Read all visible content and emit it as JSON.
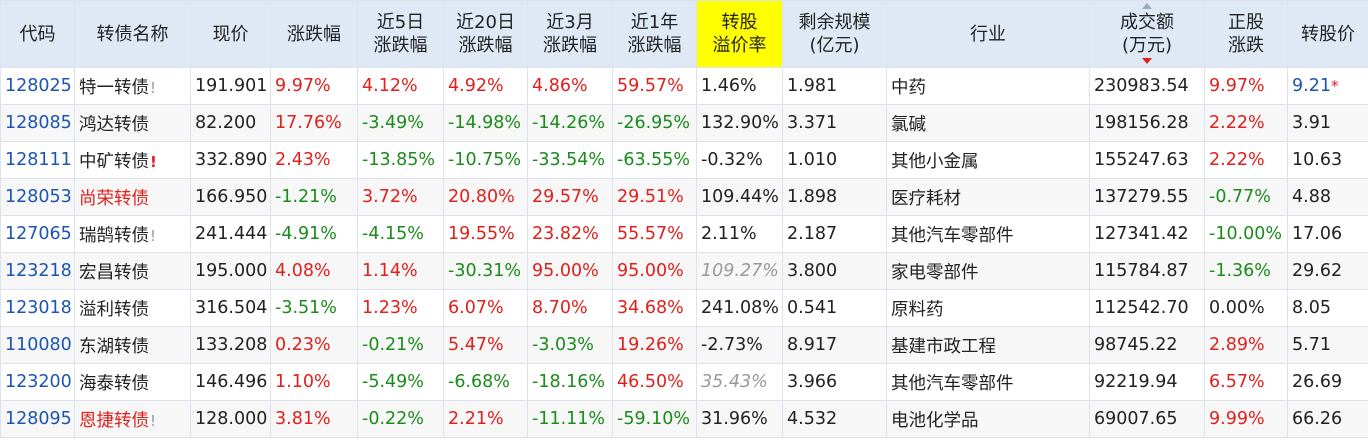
{
  "headers": {
    "code": "代码",
    "name": "转债名称",
    "price": "现价",
    "change": "涨跌幅",
    "chg5d_1": "近5日",
    "chg5d_2": "涨跌幅",
    "chg20d_1": "近20日",
    "chg20d_2": "涨跌幅",
    "chg3m_1": "近3月",
    "chg3m_2": "涨跌幅",
    "chg1y_1": "近1年",
    "chg1y_2": "涨跌幅",
    "premium_1": "转股",
    "premium_2": "溢价率",
    "scale_1": "剩余规模",
    "scale_2": "(亿元)",
    "industry": "行业",
    "volume_1": "成交额",
    "volume_2": "(万元)",
    "stock_chg_1": "正股",
    "stock_chg_2": "涨跌",
    "conv_price": "转股价"
  },
  "colors": {
    "up": "#e0201c",
    "down": "#1a8c1a",
    "code": "#1b54b2",
    "header_bg": "#dfe9f6",
    "highlight": "#ffff00"
  },
  "rows": [
    {
      "code": "128025",
      "name": "特一转债",
      "mark": "!",
      "mark_style": "grey",
      "name_style": "",
      "price": "191.901",
      "change": "9.97%",
      "change_s": "red",
      "chg5d": "4.12%",
      "chg5d_s": "red",
      "chg20d": "4.92%",
      "chg20d_s": "red",
      "chg3m": "4.86%",
      "chg3m_s": "red",
      "chg1y": "59.57%",
      "chg1y_s": "red",
      "premium": "1.46%",
      "premium_s": "",
      "scale": "1.981",
      "industry": "中药",
      "volume": "230983.54",
      "stock_chg": "9.97%",
      "stock_chg_s": "red",
      "conv_price": "9.21",
      "conv_s": "blue",
      "conv_star": "*"
    },
    {
      "code": "128085",
      "name": "鸿达转债",
      "mark": "",
      "mark_style": "",
      "name_style": "",
      "price": "82.200",
      "change": "17.76%",
      "change_s": "red",
      "chg5d": "-3.49%",
      "chg5d_s": "green",
      "chg20d": "-14.98%",
      "chg20d_s": "green",
      "chg3m": "-14.26%",
      "chg3m_s": "green",
      "chg1y": "-26.95%",
      "chg1y_s": "green",
      "premium": "132.90%",
      "premium_s": "",
      "scale": "3.371",
      "industry": "氯碱",
      "volume": "198156.28",
      "stock_chg": "2.22%",
      "stock_chg_s": "red",
      "conv_price": "3.91",
      "conv_s": "",
      "conv_star": ""
    },
    {
      "code": "128111",
      "name": "中矿转债",
      "mark": "!",
      "mark_style": "red",
      "name_style": "",
      "price": "332.890",
      "change": "2.43%",
      "change_s": "red",
      "chg5d": "-13.85%",
      "chg5d_s": "green",
      "chg20d": "-10.75%",
      "chg20d_s": "green",
      "chg3m": "-33.54%",
      "chg3m_s": "green",
      "chg1y": "-63.55%",
      "chg1y_s": "green",
      "premium": "-0.32%",
      "premium_s": "",
      "scale": "1.010",
      "industry": "其他小金属",
      "volume": "155247.63",
      "stock_chg": "2.22%",
      "stock_chg_s": "red",
      "conv_price": "10.63",
      "conv_s": "",
      "conv_star": ""
    },
    {
      "code": "128053",
      "name": "尚荣转债",
      "mark": "",
      "mark_style": "",
      "name_style": "red",
      "price": "166.950",
      "change": "-1.21%",
      "change_s": "green",
      "chg5d": "3.72%",
      "chg5d_s": "red",
      "chg20d": "20.80%",
      "chg20d_s": "red",
      "chg3m": "29.57%",
      "chg3m_s": "red",
      "chg1y": "29.51%",
      "chg1y_s": "red",
      "premium": "109.44%",
      "premium_s": "",
      "scale": "1.898",
      "industry": "医疗耗材",
      "volume": "137279.55",
      "stock_chg": "-0.77%",
      "stock_chg_s": "green",
      "conv_price": "4.88",
      "conv_s": "",
      "conv_star": ""
    },
    {
      "code": "127065",
      "name": "瑞鹄转债",
      "mark": "!",
      "mark_style": "grey",
      "name_style": "",
      "price": "241.444",
      "change": "-4.91%",
      "change_s": "green",
      "chg5d": "-4.15%",
      "chg5d_s": "green",
      "chg20d": "19.55%",
      "chg20d_s": "red",
      "chg3m": "23.82%",
      "chg3m_s": "red",
      "chg1y": "55.57%",
      "chg1y_s": "red",
      "premium": "2.11%",
      "premium_s": "",
      "scale": "2.187",
      "industry": "其他汽车零部件",
      "volume": "127341.42",
      "stock_chg": "-10.00%",
      "stock_chg_s": "green",
      "conv_price": "17.06",
      "conv_s": "",
      "conv_star": ""
    },
    {
      "code": "123218",
      "name": "宏昌转债",
      "mark": "",
      "mark_style": "",
      "name_style": "",
      "price": "195.000",
      "change": "4.08%",
      "change_s": "red",
      "chg5d": "1.14%",
      "chg5d_s": "red",
      "chg20d": "-30.31%",
      "chg20d_s": "green",
      "chg3m": "95.00%",
      "chg3m_s": "red",
      "chg1y": "95.00%",
      "chg1y_s": "red",
      "premium": "109.27%",
      "premium_s": "italic",
      "scale": "3.800",
      "industry": "家电零部件",
      "volume": "115784.87",
      "stock_chg": "-1.36%",
      "stock_chg_s": "green",
      "conv_price": "29.62",
      "conv_s": "",
      "conv_star": ""
    },
    {
      "code": "123018",
      "name": "溢利转债",
      "mark": "",
      "mark_style": "",
      "name_style": "",
      "price": "316.504",
      "change": "-3.51%",
      "change_s": "green",
      "chg5d": "1.23%",
      "chg5d_s": "red",
      "chg20d": "6.07%",
      "chg20d_s": "red",
      "chg3m": "8.70%",
      "chg3m_s": "red",
      "chg1y": "34.68%",
      "chg1y_s": "red",
      "premium": "241.08%",
      "premium_s": "",
      "scale": "0.541",
      "industry": "原料药",
      "volume": "112542.70",
      "stock_chg": "0.00%",
      "stock_chg_s": "",
      "conv_price": "8.05",
      "conv_s": "",
      "conv_star": ""
    },
    {
      "code": "110080",
      "name": "东湖转债",
      "mark": "",
      "mark_style": "",
      "name_style": "",
      "price": "133.208",
      "change": "0.23%",
      "change_s": "red",
      "chg5d": "-0.21%",
      "chg5d_s": "green",
      "chg20d": "5.47%",
      "chg20d_s": "red",
      "chg3m": "-3.03%",
      "chg3m_s": "green",
      "chg1y": "19.26%",
      "chg1y_s": "red",
      "premium": "-2.73%",
      "premium_s": "",
      "scale": "8.917",
      "industry": "基建市政工程",
      "volume": "98745.22",
      "stock_chg": "2.89%",
      "stock_chg_s": "red",
      "conv_price": "5.71",
      "conv_s": "",
      "conv_star": ""
    },
    {
      "code": "123200",
      "name": "海泰转债",
      "mark": "",
      "mark_style": "",
      "name_style": "",
      "price": "146.496",
      "change": "1.10%",
      "change_s": "red",
      "chg5d": "-5.49%",
      "chg5d_s": "green",
      "chg20d": "-6.68%",
      "chg20d_s": "green",
      "chg3m": "-18.16%",
      "chg3m_s": "green",
      "chg1y": "46.50%",
      "chg1y_s": "red",
      "premium": "35.43%",
      "premium_s": "italic",
      "scale": "3.966",
      "industry": "其他汽车零部件",
      "volume": "92219.94",
      "stock_chg": "6.57%",
      "stock_chg_s": "red",
      "conv_price": "26.69",
      "conv_s": "",
      "conv_star": ""
    },
    {
      "code": "128095",
      "name": "恩捷转债",
      "mark": "!",
      "mark_style": "grey",
      "name_style": "red",
      "price": "128.000",
      "change": "3.81%",
      "change_s": "red",
      "chg5d": "-0.22%",
      "chg5d_s": "green",
      "chg20d": "2.21%",
      "chg20d_s": "red",
      "chg3m": "-11.11%",
      "chg3m_s": "green",
      "chg1y": "-59.10%",
      "chg1y_s": "green",
      "premium": "31.96%",
      "premium_s": "",
      "scale": "4.532",
      "industry": "电池化学品",
      "volume": "69007.65",
      "stock_chg": "9.99%",
      "stock_chg_s": "red",
      "conv_price": "66.26",
      "conv_s": "",
      "conv_star": ""
    }
  ]
}
